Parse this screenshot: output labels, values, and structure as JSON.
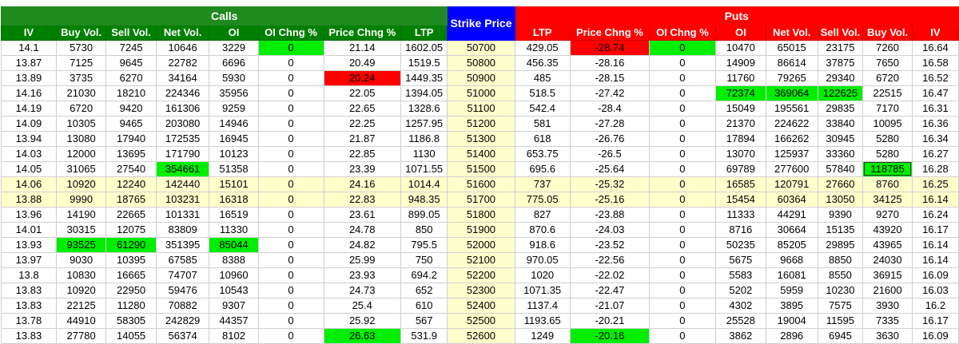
{
  "groups": {
    "calls": "Calls",
    "strike": "Strike Price",
    "puts": "Puts"
  },
  "colors": {
    "calls_header": "#008000",
    "puts_header": "#ff0000",
    "strike_header": "#0000ff",
    "strike_fill": "#ffffcc",
    "highlight_green": "#00ee00",
    "highlight_red": "#ff0000"
  },
  "columns": {
    "calls": [
      "IV",
      "Buy Vol.",
      "Sell Vol.",
      "Net Vol.",
      "OI",
      "OI Chng %",
      "Price Chng %",
      "LTP"
    ],
    "puts": [
      "LTP",
      "Price Chng %",
      "OI Chng %",
      "OI",
      "Net Vol.",
      "Sell Vol.",
      "Buy Vol.",
      "IV"
    ]
  },
  "rows": [
    {
      "calls": [
        "14.1",
        "5730",
        "7245",
        "10646",
        "3229",
        "0",
        "21.14",
        "1602.05"
      ],
      "strike": "50700",
      "puts": [
        "429.05",
        "-28.74",
        "0",
        "10470",
        "65015",
        "23175",
        "7260",
        "16.64"
      ]
    },
    {
      "calls": [
        "13.87",
        "7125",
        "9645",
        "22782",
        "6696",
        "0",
        "20.49",
        "1519.5"
      ],
      "strike": "50800",
      "puts": [
        "456.35",
        "-28.16",
        "0",
        "14909",
        "86614",
        "37875",
        "7650",
        "16.58"
      ]
    },
    {
      "calls": [
        "13.89",
        "3735",
        "6270",
        "34164",
        "5930",
        "0",
        "20.24",
        "1449.35"
      ],
      "strike": "50900",
      "puts": [
        "485",
        "-28.15",
        "0",
        "11760",
        "79265",
        "29340",
        "6720",
        "16.52"
      ]
    },
    {
      "calls": [
        "14.16",
        "21030",
        "18210",
        "224346",
        "35956",
        "0",
        "22.05",
        "1394.05"
      ],
      "strike": "51000",
      "puts": [
        "518.5",
        "-27.42",
        "0",
        "72374",
        "369064",
        "122625",
        "22515",
        "16.47"
      ]
    },
    {
      "calls": [
        "14.19",
        "6720",
        "9420",
        "161306",
        "9259",
        "0",
        "22.65",
        "1328.6"
      ],
      "strike": "51100",
      "puts": [
        "542.4",
        "-28.4",
        "0",
        "15049",
        "195561",
        "29835",
        "7170",
        "16.31"
      ]
    },
    {
      "calls": [
        "14.09",
        "10305",
        "9465",
        "203080",
        "14946",
        "0",
        "22.25",
        "1257.95"
      ],
      "strike": "51200",
      "puts": [
        "581",
        "-27.28",
        "0",
        "21370",
        "224622",
        "33840",
        "10095",
        "16.36"
      ]
    },
    {
      "calls": [
        "13.94",
        "13080",
        "17940",
        "172535",
        "16945",
        "0",
        "21.87",
        "1186.8"
      ],
      "strike": "51300",
      "puts": [
        "618",
        "-26.76",
        "0",
        "17894",
        "166262",
        "30945",
        "5280",
        "16.34"
      ]
    },
    {
      "calls": [
        "14.03",
        "12000",
        "13695",
        "171790",
        "10123",
        "0",
        "22.85",
        "1130"
      ],
      "strike": "51400",
      "puts": [
        "653.75",
        "-26.5",
        "0",
        "13070",
        "125937",
        "33360",
        "5280",
        "16.27"
      ]
    },
    {
      "calls": [
        "14.05",
        "31065",
        "27540",
        "354661",
        "51358",
        "0",
        "23.39",
        "1071.55"
      ],
      "strike": "51500",
      "puts": [
        "695.6",
        "-25.64",
        "0",
        "69789",
        "277600",
        "57840",
        "118785",
        "16.28"
      ]
    },
    {
      "calls": [
        "14.06",
        "10920",
        "12240",
        "142440",
        "15101",
        "0",
        "24.16",
        "1014.4"
      ],
      "strike": "51600",
      "puts": [
        "737",
        "-25.32",
        "0",
        "16585",
        "120791",
        "27660",
        "8760",
        "16.25"
      ]
    },
    {
      "calls": [
        "13.88",
        "9990",
        "18765",
        "103231",
        "16318",
        "0",
        "22.83",
        "948.35"
      ],
      "strike": "51700",
      "puts": [
        "775.05",
        "-25.16",
        "0",
        "15454",
        "60364",
        "13050",
        "34125",
        "16.14"
      ]
    },
    {
      "calls": [
        "13.96",
        "14190",
        "22665",
        "101331",
        "16519",
        "0",
        "23.61",
        "899.05"
      ],
      "strike": "51800",
      "puts": [
        "827",
        "-23.88",
        "0",
        "11333",
        "44291",
        "9390",
        "9270",
        "16.24"
      ]
    },
    {
      "calls": [
        "14.01",
        "30315",
        "12075",
        "83809",
        "11330",
        "0",
        "24.78",
        "850"
      ],
      "strike": "51900",
      "puts": [
        "870.6",
        "-24.03",
        "0",
        "8716",
        "30664",
        "15135",
        "43920",
        "16.17"
      ]
    },
    {
      "calls": [
        "13.93",
        "93525",
        "61290",
        "351395",
        "85044",
        "0",
        "24.82",
        "795.5"
      ],
      "strike": "52000",
      "puts": [
        "918.6",
        "-23.52",
        "0",
        "50235",
        "85205",
        "29895",
        "43965",
        "16.14"
      ]
    },
    {
      "calls": [
        "13.97",
        "9030",
        "10395",
        "67585",
        "8388",
        "0",
        "25.99",
        "750"
      ],
      "strike": "52100",
      "puts": [
        "970.05",
        "-22.56",
        "0",
        "5675",
        "9668",
        "8850",
        "24030",
        "16.14"
      ]
    },
    {
      "calls": [
        "13.8",
        "10830",
        "16665",
        "74707",
        "10960",
        "0",
        "23.93",
        "694.2"
      ],
      "strike": "52200",
      "puts": [
        "1020",
        "-22.02",
        "0",
        "5583",
        "16081",
        "8550",
        "36915",
        "16.09"
      ]
    },
    {
      "calls": [
        "13.83",
        "10920",
        "22950",
        "59476",
        "10543",
        "0",
        "24.73",
        "652"
      ],
      "strike": "52300",
      "puts": [
        "1071.35",
        "-22.47",
        "0",
        "5202",
        "5959",
        "10230",
        "21600",
        "16.03"
      ]
    },
    {
      "calls": [
        "13.83",
        "22125",
        "11280",
        "70882",
        "9307",
        "0",
        "25.4",
        "610"
      ],
      "strike": "52400",
      "puts": [
        "1137.4",
        "-21.07",
        "0",
        "4302",
        "3895",
        "7575",
        "3930",
        "16.2"
      ]
    },
    {
      "calls": [
        "13.78",
        "44910",
        "58305",
        "242829",
        "44357",
        "0",
        "25.92",
        "567"
      ],
      "strike": "52500",
      "puts": [
        "1193.65",
        "-20.21",
        "0",
        "25528",
        "19004",
        "11595",
        "7335",
        "16.17"
      ]
    },
    {
      "calls": [
        "13.83",
        "27780",
        "14055",
        "56374",
        "8102",
        "0",
        "26.63",
        "531.9"
      ],
      "strike": "52600",
      "puts": [
        "1249",
        "-20.16",
        "0",
        "3862",
        "2896",
        "6945",
        "3630",
        "16.09"
      ]
    }
  ]
}
